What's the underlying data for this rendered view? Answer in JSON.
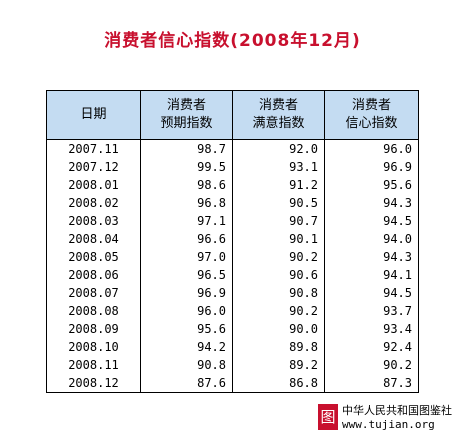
{
  "title": "消费者信心指数(2008年12月)",
  "table": {
    "headers": [
      "日期",
      "消费者\n预期指数",
      "消费者\n满意指数",
      "消费者\n信心指数"
    ],
    "rows": [
      [
        "2007.11",
        "98.7",
        "92.0",
        "96.0"
      ],
      [
        "2007.12",
        "99.5",
        "93.1",
        "96.9"
      ],
      [
        "2008.01",
        "98.6",
        "91.2",
        "95.6"
      ],
      [
        "2008.02",
        "96.8",
        "90.5",
        "94.3"
      ],
      [
        "2008.03",
        "97.1",
        "90.7",
        "94.5"
      ],
      [
        "2008.04",
        "96.6",
        "90.1",
        "94.0"
      ],
      [
        "2008.05",
        "97.0",
        "90.2",
        "94.3"
      ],
      [
        "2008.06",
        "96.5",
        "90.6",
        "94.1"
      ],
      [
        "2008.07",
        "96.9",
        "90.8",
        "94.5"
      ],
      [
        "2008.08",
        "96.0",
        "90.2",
        "93.7"
      ],
      [
        "2008.09",
        "95.6",
        "90.0",
        "93.4"
      ],
      [
        "2008.10",
        "94.2",
        "89.8",
        "92.4"
      ],
      [
        "2008.11",
        "90.8",
        "89.2",
        "90.2"
      ],
      [
        "2008.12",
        "87.6",
        "86.8",
        "87.3"
      ]
    ]
  },
  "watermark": {
    "logo_char": "图",
    "text": "中华人民共和国图鉴社",
    "url": "www.tujian.org"
  },
  "colors": {
    "title": "#c8102e",
    "header_bg": "#c4dcf2"
  }
}
